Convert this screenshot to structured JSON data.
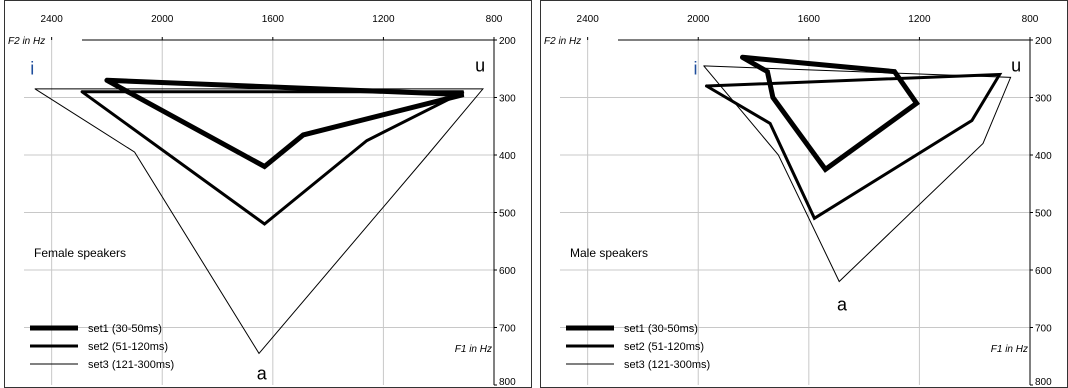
{
  "chart_data": [
    {
      "type": "line",
      "caption": "Female speakers",
      "xlabel": "F2 in Hz",
      "ylabel": "F1 in Hz",
      "xlim": [
        2500,
        800
      ],
      "ylim": [
        200,
        800
      ],
      "x_ticks": [
        2400,
        2000,
        1600,
        1200,
        800
      ],
      "x_tick_labels": [
        "2400",
        "2000",
        "1600",
        "1200",
        "800"
      ],
      "y_ticks": [
        200,
        300,
        400,
        500,
        600,
        700,
        800
      ],
      "y_tick_labels": [
        "200",
        "300",
        "400",
        "500",
        "600",
        "700",
        "800"
      ],
      "grid": true,
      "vowel_labels": [
        {
          "text": "i",
          "x": 2470,
          "y": 260
        },
        {
          "text": "u",
          "x": 850,
          "y": 255
        },
        {
          "text": "a",
          "x": 1640,
          "y": 790
        }
      ],
      "legend_position": "bottom-left",
      "series": [
        {
          "name": "set1 (30-50ms)",
          "style": "thick",
          "points": [
            [
              2200,
              270
            ],
            [
              910,
              295
            ],
            [
              1490,
              365
            ],
            [
              1630,
              420
            ],
            [
              2200,
              270
            ]
          ]
        },
        {
          "name": "set2 (51-120ms)",
          "style": "medium",
          "points": [
            [
              2290,
              290
            ],
            [
              910,
              290
            ],
            [
              1260,
              375
            ],
            [
              1630,
              520
            ],
            [
              2290,
              290
            ]
          ]
        },
        {
          "name": "set3 (121-300ms)",
          "style": "thin",
          "points": [
            [
              2460,
              285
            ],
            [
              2100,
              395
            ],
            [
              1650,
              745
            ],
            [
              1040,
              400
            ],
            [
              840,
              285
            ],
            [
              2460,
              285
            ]
          ]
        }
      ]
    },
    {
      "type": "line",
      "caption": "Male speakers",
      "xlabel": "F2 in Hz",
      "ylabel": "F1 in Hz",
      "xlim": [
        2500,
        800
      ],
      "ylim": [
        200,
        800
      ],
      "x_ticks": [
        2400,
        2000,
        1600,
        1200,
        800
      ],
      "x_tick_labels": [
        "2400",
        "2000",
        "1600",
        "1200",
        "800"
      ],
      "y_ticks": [
        200,
        300,
        400,
        500,
        600,
        700,
        800
      ],
      "y_tick_labels": [
        "200",
        "300",
        "400",
        "500",
        "600",
        "700",
        "800"
      ],
      "grid": true,
      "vowel_labels": [
        {
          "text": "i",
          "x": 2010,
          "y": 260
        },
        {
          "text": "u",
          "x": 850,
          "y": 255
        },
        {
          "text": "a",
          "x": 1480,
          "y": 670
        }
      ],
      "legend_position": "bottom-left",
      "series": [
        {
          "name": "set1 (30-50ms)",
          "style": "thick",
          "points": [
            [
              1840,
              230
            ],
            [
              1290,
              255
            ],
            [
              1210,
              310
            ],
            [
              1540,
              425
            ],
            [
              1730,
              300
            ],
            [
              1750,
              255
            ],
            [
              1840,
              230
            ]
          ]
        },
        {
          "name": "set2 (51-120ms)",
          "style": "medium",
          "points": [
            [
              1970,
              280
            ],
            [
              910,
              260
            ],
            [
              1010,
              340
            ],
            [
              1580,
              510
            ],
            [
              1740,
              345
            ],
            [
              1970,
              280
            ]
          ]
        },
        {
          "name": "set3 (121-300ms)",
          "style": "thin",
          "points": [
            [
              1980,
              245
            ],
            [
              870,
              265
            ],
            [
              970,
              380
            ],
            [
              1490,
              620
            ],
            [
              1710,
              400
            ],
            [
              1980,
              245
            ]
          ]
        }
      ]
    }
  ]
}
